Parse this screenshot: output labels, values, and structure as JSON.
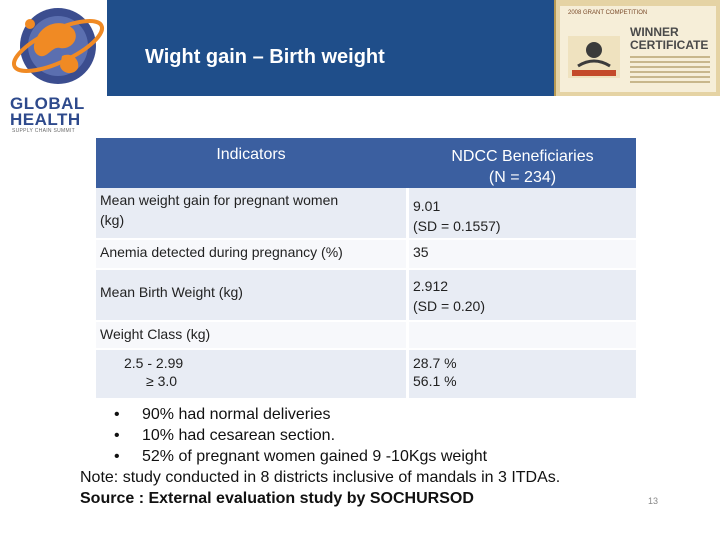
{
  "title": "Wight gain – Birth weight",
  "logo": {
    "line1": "GLOBAL",
    "line2": "HEALTH",
    "line3": "SUPPLY CHAIN SUMMIT"
  },
  "certificate": {
    "badge": "2008 GRANT COMPETITION",
    "heading_line1": "WINNER",
    "heading_line2": "CERTIFICATE"
  },
  "table": {
    "header_indicators": "Indicators",
    "header_ndcc_line1": "NDCC Beneficiaries",
    "header_ndcc_line2": "(N = 234)",
    "rows": [
      {
        "indicator_line1": "Mean weight gain for pregnant women",
        "indicator_line2": "(kg)",
        "value_line1": "9.01",
        "value_line2": "(SD = 0.1557)"
      },
      {
        "indicator_line1": "Anemia detected during pregnancy  (%)",
        "value_line1": "35"
      },
      {
        "indicator_line1": "Mean Birth Weight (kg)",
        "value_line1": "2.912",
        "value_line2": "(SD = 0.20)"
      },
      {
        "indicator_line1": "Weight Class (kg)"
      },
      {
        "indicator_line1": "2.5 - 2.99",
        "indicator_line2": "≥ 3.0",
        "value_line1": "28.7 %",
        "value_line2": "56.1 %"
      }
    ]
  },
  "bullets": [
    "90% had normal deliveries",
    "10% had cesarean section.",
    "52% of pregnant women gained 9 -10Kgs weight"
  ],
  "note": "Note: study conducted in 8 districts inclusive of mandals in 3 ITDAs.",
  "source": "Source : External evaluation study by SOCHURSOD",
  "page_number": "13",
  "colors": {
    "header_band": "#1f4e8a",
    "table_header": "#3b5fa0",
    "row_shade": "#e8ecf4"
  }
}
